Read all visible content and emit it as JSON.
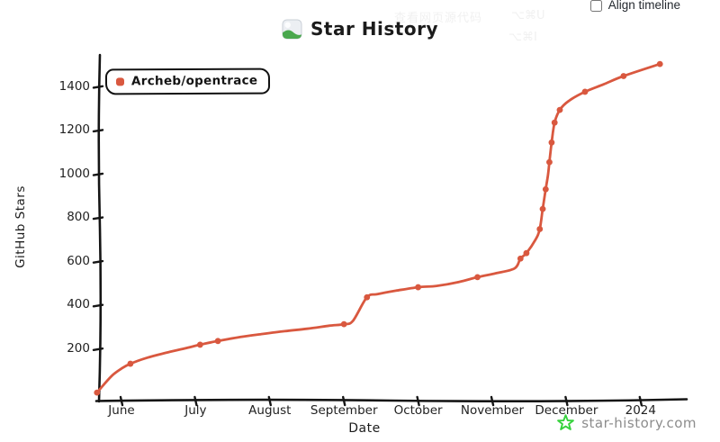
{
  "ghost_menu": {
    "item1": "查看网页源代码",
    "shortcut1": "⌥⌘U",
    "shortcut2": "⌥⌘I"
  },
  "controls": {
    "align_timeline_label": "Align timeline",
    "align_timeline_checked": false
  },
  "header": {
    "title": "Star History"
  },
  "legend": {
    "series_label": "Archeb/opentrace"
  },
  "watermark": {
    "text": "star-history.com"
  },
  "colors": {
    "series": "#d9583f",
    "axis": "#151515",
    "watermark_star": "#35d23c",
    "watermark_text": "#8c8c8c"
  },
  "chart_data": {
    "type": "line",
    "title": "Star History",
    "xlabel": "Date",
    "ylabel": "GitHub Stars",
    "legend_position": "top-left",
    "grid": false,
    "x_tick_labels": [
      "June",
      "July",
      "August",
      "September",
      "October",
      "November",
      "December",
      "2024"
    ],
    "y_ticks": [
      200,
      400,
      600,
      800,
      1000,
      1200,
      1400
    ],
    "ylim": [
      0,
      1550
    ],
    "x_unit": "months offset from June tick",
    "series": [
      {
        "name": "Archeb/opentrace",
        "color": "#d9583f",
        "points": [
          [
            -0.33,
            2,
            1
          ],
          [
            -0.24,
            38,
            0
          ],
          [
            -0.12,
            82,
            0
          ],
          [
            0.0,
            112,
            0
          ],
          [
            0.12,
            134,
            1
          ],
          [
            0.35,
            162,
            0
          ],
          [
            0.6,
            184,
            0
          ],
          [
            0.85,
            204,
            0
          ],
          [
            1.06,
            221,
            1
          ],
          [
            1.3,
            238,
            1
          ],
          [
            1.6,
            256,
            0
          ],
          [
            1.9,
            270,
            0
          ],
          [
            2.2,
            283,
            0
          ],
          [
            2.5,
            294,
            0
          ],
          [
            2.8,
            308,
            0
          ],
          [
            3.0,
            315,
            1
          ],
          [
            3.12,
            330,
            0
          ],
          [
            3.31,
            438,
            1
          ],
          [
            3.45,
            452,
            0
          ],
          [
            3.7,
            468,
            0
          ],
          [
            4.0,
            484,
            1
          ],
          [
            4.25,
            490,
            0
          ],
          [
            4.55,
            508,
            0
          ],
          [
            4.8,
            530,
            1
          ],
          [
            5.05,
            548,
            0
          ],
          [
            5.3,
            570,
            0
          ],
          [
            5.38,
            615,
            1
          ],
          [
            5.46,
            640,
            1
          ],
          [
            5.58,
            700,
            0
          ],
          [
            5.64,
            750,
            1
          ],
          [
            5.68,
            842,
            1
          ],
          [
            5.72,
            932,
            1
          ],
          [
            5.75,
            995,
            0
          ],
          [
            5.77,
            1056,
            1
          ],
          [
            5.8,
            1146,
            1
          ],
          [
            5.84,
            1237,
            1
          ],
          [
            5.91,
            1295,
            1
          ],
          [
            6.03,
            1336,
            0
          ],
          [
            6.25,
            1378,
            1
          ],
          [
            6.5,
            1412,
            0
          ],
          [
            6.77,
            1450,
            1
          ],
          [
            7.26,
            1505,
            1
          ]
        ]
      }
    ]
  }
}
